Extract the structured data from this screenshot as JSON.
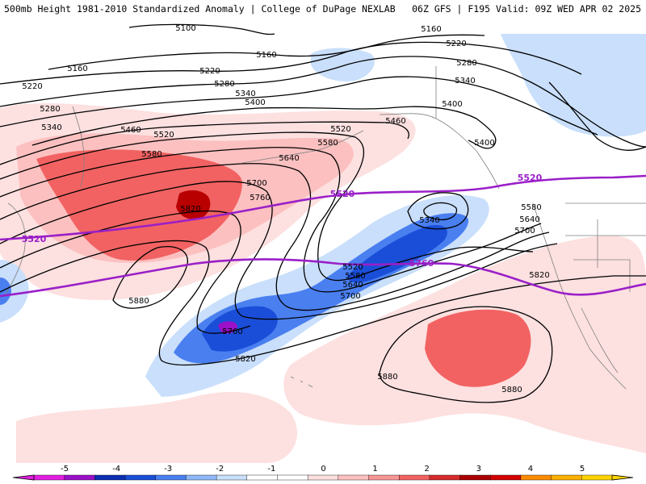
{
  "header": {
    "title": "500mb Height 1981-2010 Standardized Anomaly | College of DuPage NEXLAB",
    "run_info": "06Z GFS | F195 Valid: 09Z WED APR 02 2025"
  },
  "map": {
    "contour_labels": [
      {
        "id": "c5100",
        "text": "5100"
      },
      {
        "id": "c5160a",
        "text": "5160"
      },
      {
        "id": "c5160b",
        "text": "5160"
      },
      {
        "id": "c5160c",
        "text": "5160"
      },
      {
        "id": "c5220a",
        "text": "5220"
      },
      {
        "id": "c5220b",
        "text": "5220"
      },
      {
        "id": "c5220c",
        "text": "5220"
      },
      {
        "id": "c5280a",
        "text": "5280"
      },
      {
        "id": "c5280b",
        "text": "5280"
      },
      {
        "id": "c5280c",
        "text": "5280"
      },
      {
        "id": "c5340a",
        "text": "5340"
      },
      {
        "id": "c5340b",
        "text": "5340"
      },
      {
        "id": "c5340c",
        "text": "5340"
      },
      {
        "id": "c5340d",
        "text": "5340"
      },
      {
        "id": "c5400a",
        "text": "5400"
      },
      {
        "id": "c5400b",
        "text": "5400"
      },
      {
        "id": "c5400c",
        "text": "5400"
      },
      {
        "id": "c5460a",
        "text": "5460"
      },
      {
        "id": "c5460b",
        "text": "5460"
      },
      {
        "id": "c5520a",
        "text": "5520"
      },
      {
        "id": "c5520b",
        "text": "5520"
      },
      {
        "id": "c5520c",
        "text": "5520"
      },
      {
        "id": "c5580a",
        "text": "5580"
      },
      {
        "id": "c5580b",
        "text": "5580"
      },
      {
        "id": "c5580c",
        "text": "5580"
      },
      {
        "id": "c5580d",
        "text": "5580"
      },
      {
        "id": "c5640a",
        "text": "5640"
      },
      {
        "id": "c5640b",
        "text": "5640"
      },
      {
        "id": "c5640c",
        "text": "5640"
      },
      {
        "id": "c5700a",
        "text": "5700"
      },
      {
        "id": "c5700b",
        "text": "5700"
      },
      {
        "id": "c5700c",
        "text": "5700"
      },
      {
        "id": "c5760a",
        "text": "5760"
      },
      {
        "id": "c5760b",
        "text": "5760"
      },
      {
        "id": "c5820a",
        "text": "5820"
      },
      {
        "id": "c5820b",
        "text": "5820"
      },
      {
        "id": "c5820c",
        "text": "5820"
      },
      {
        "id": "c5880a",
        "text": "5880"
      },
      {
        "id": "c5880b",
        "text": "5880"
      },
      {
        "id": "c5880c",
        "text": "5880"
      }
    ],
    "climo_labels": [
      {
        "id": "m5520a",
        "text": "5520"
      },
      {
        "id": "m5520b",
        "text": "5520"
      },
      {
        "id": "m5520c",
        "text": "5520"
      },
      {
        "id": "m5760",
        "text": "5760"
      }
    ],
    "colors": {
      "contour": "#000000",
      "climo_line": "#9a1fc8",
      "border": "#808080"
    }
  },
  "colorbar": {
    "ticks": [
      "-5",
      "-4",
      "-3",
      "-2",
      "-1",
      "0",
      "1",
      "2",
      "3",
      "4",
      "5"
    ],
    "segment_colors": [
      "#e21ee0",
      "#9b10c8",
      "#0b2fb3",
      "#1a4ed8",
      "#4a7ff0",
      "#8fb8f7",
      "#c9dffb",
      "#ffffff",
      "#ffffff",
      "#fde0e0",
      "#fcc0c0",
      "#f89595",
      "#f26262",
      "#d62c2c",
      "#aa0000",
      "#d40000",
      "#ff8c00",
      "#ffb000",
      "#ffd400"
    ]
  }
}
